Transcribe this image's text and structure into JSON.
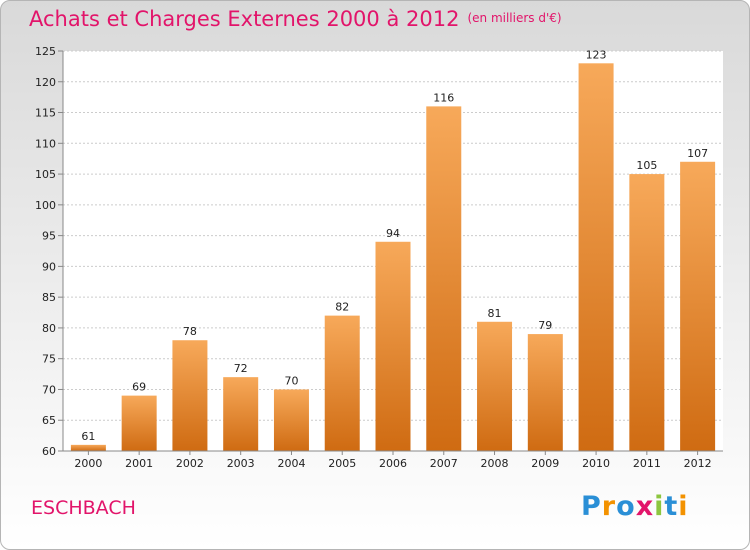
{
  "chart_data": {
    "type": "bar",
    "title": "Achats et Charges Externes 2000 à 2012",
    "subtitle": "(en milliers d'€)",
    "categories": [
      "2000",
      "2001",
      "2002",
      "2003",
      "2004",
      "2005",
      "2006",
      "2007",
      "2008",
      "2009",
      "2010",
      "2011",
      "2012"
    ],
    "values": [
      61,
      69,
      78,
      72,
      70,
      82,
      94,
      116,
      81,
      79,
      123,
      105,
      107
    ],
    "ylim": [
      60,
      125
    ],
    "yticks": [
      60,
      65,
      70,
      75,
      80,
      85,
      90,
      95,
      100,
      105,
      110,
      115,
      120,
      125
    ],
    "grid": true,
    "xlabel": "",
    "ylabel": ""
  },
  "commune": "ESCHBACH",
  "logo": {
    "letters": [
      "P",
      "r",
      "o",
      "x",
      "i",
      "t",
      "i"
    ],
    "colors": [
      "#2a8fd6",
      "#f39200",
      "#2a8fd6",
      "#e2146a",
      "#8dc63f",
      "#2a8fd6",
      "#f39200"
    ]
  },
  "colors": {
    "accent": "#e2146a",
    "bar_light": "#f7a95a",
    "bar_dark": "#cf6b12"
  }
}
